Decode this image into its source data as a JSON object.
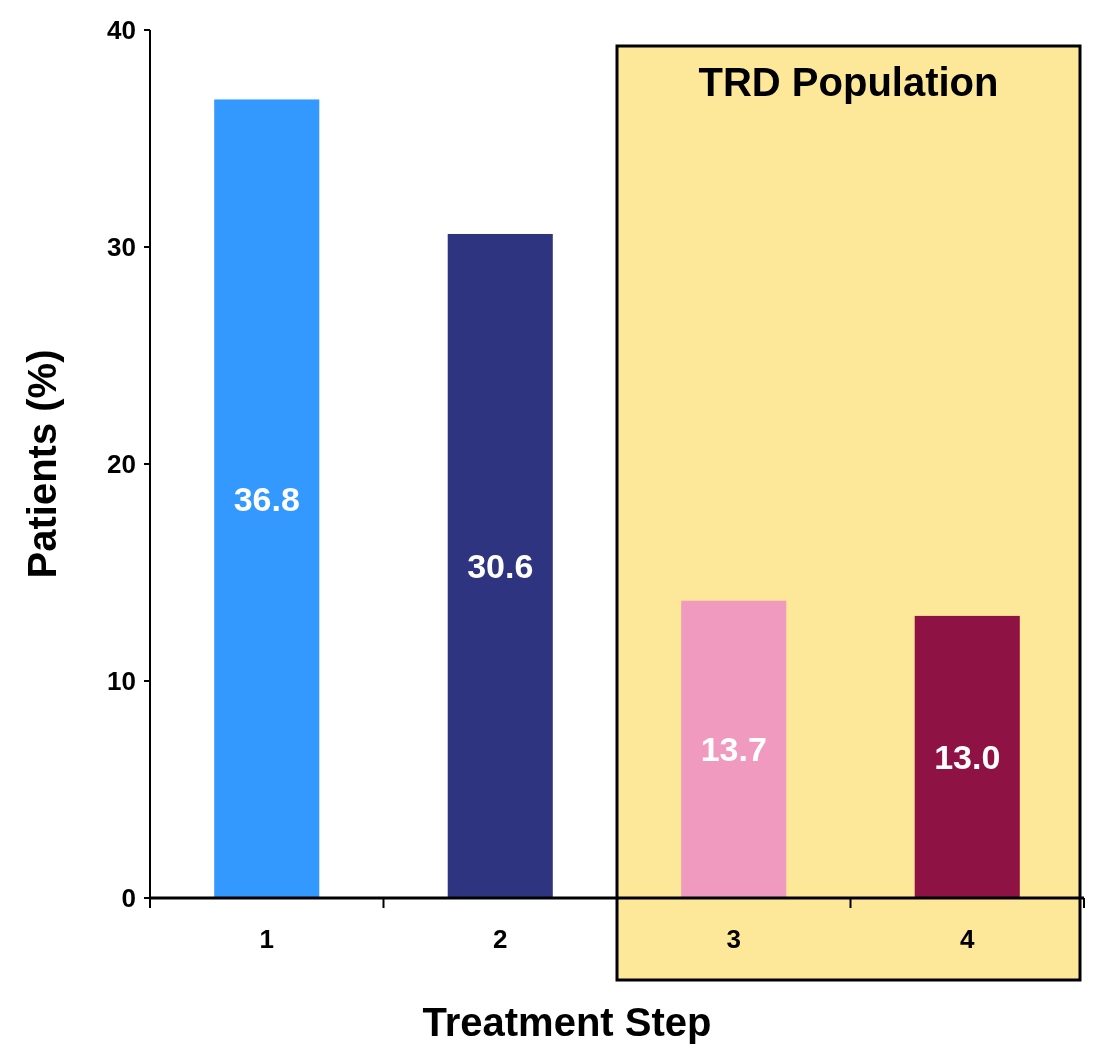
{
  "chart_data": {
    "type": "bar",
    "xlabel": "Treatment Step",
    "ylabel": "Patients (%)",
    "categories": [
      "1",
      "2",
      "3",
      "4"
    ],
    "values": [
      36.8,
      30.6,
      13.7,
      13.0
    ],
    "colors": [
      "#3399ff",
      "#2e3480",
      "#f09abf",
      "#8f1245"
    ],
    "value_labels": [
      "36.8",
      "30.6",
      "13.7",
      "13.0"
    ],
    "ylim": [
      0,
      40
    ],
    "yticks": [
      0,
      10,
      20,
      30,
      40
    ],
    "grid": false,
    "bands": [
      {
        "axis": "x",
        "from": "3",
        "to": "4",
        "label": "TRD Population",
        "color": "#fde89a"
      }
    ]
  }
}
